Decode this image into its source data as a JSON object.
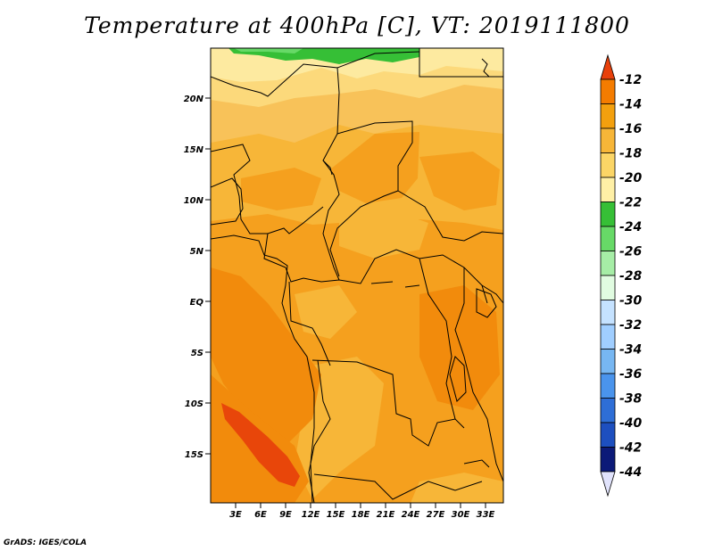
{
  "title": "Temperature at 400hPa [C], VT: 2019111800",
  "credit": "GrADS: IGES/COLA",
  "lat_labels": [
    "20N",
    "15N",
    "10N",
    "5N",
    "EQ",
    "5S",
    "10S",
    "15S"
  ],
  "lon_labels": [
    "3E",
    "6E",
    "9E",
    "12E",
    "15E",
    "18E",
    "21E",
    "24E",
    "27E",
    "30E",
    "33E"
  ],
  "colorbar": {
    "labels": [
      "-12",
      "-14",
      "-16",
      "-18",
      "-20",
      "-22",
      "-24",
      "-26",
      "-28",
      "-30",
      "-32",
      "-34",
      "-36",
      "-38",
      "-40",
      "-42",
      "-44"
    ],
    "colors": [
      "#e8460a",
      "#f47c00",
      "#f3a00e",
      "#f7b638",
      "#fbd566",
      "#fff0a6",
      "#36bf36",
      "#67d967",
      "#a6eda6",
      "#e1fce1",
      "#c5e2ff",
      "#a0ceff",
      "#77b7f2",
      "#4a94ec",
      "#2e6ed6",
      "#1d4fbf",
      "#0c1a78"
    ],
    "top_arrow_color": "#e8400b",
    "bottom_arrow_color": "#e1e3fc"
  }
}
